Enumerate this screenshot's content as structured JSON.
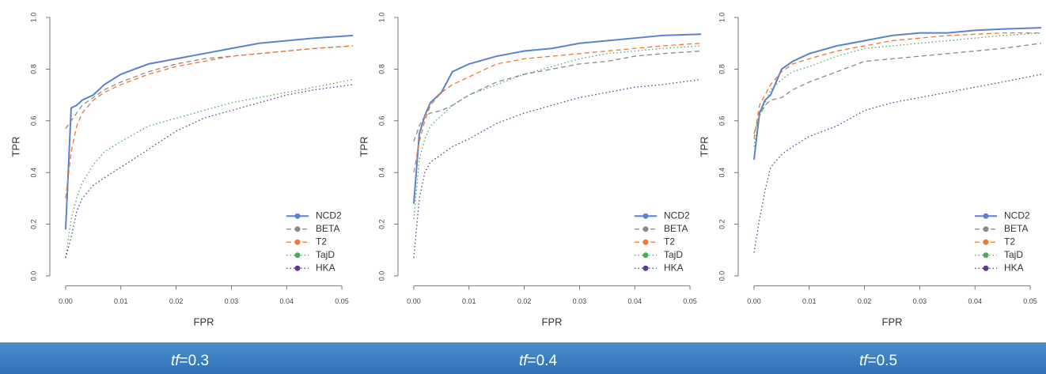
{
  "chart_data": [
    {
      "type": "line",
      "xlabel": "FPR",
      "ylabel": "TPR",
      "caption_var": "tf",
      "caption_rest": "=0.3",
      "xlim": [
        -0.002,
        0.052
      ],
      "ylim": [
        -0.02,
        1.02
      ],
      "xticks": [
        {
          "value": 0,
          "label": "0.00"
        },
        {
          "value": 0.01,
          "label": "0.01"
        },
        {
          "value": 0.02,
          "label": "0.02"
        },
        {
          "value": 0.03,
          "label": "0.03"
        },
        {
          "value": 0.04,
          "label": "0.04"
        },
        {
          "value": 0.05,
          "label": "0.05"
        }
      ],
      "yticks": [
        {
          "value": 0,
          "label": "0.0"
        },
        {
          "value": 0.2,
          "label": "0.2"
        },
        {
          "value": 0.4,
          "label": "0.4"
        },
        {
          "value": 0.6,
          "label": "0.6"
        },
        {
          "value": 0.8,
          "label": "0.8"
        },
        {
          "value": 1,
          "label": "1.0"
        }
      ],
      "legend": "bottom right",
      "x": [
        0,
        0.001,
        0.002,
        0.003,
        0.005,
        0.007,
        0.01,
        0.015,
        0.02,
        0.025,
        0.03,
        0.035,
        0.04,
        0.045,
        0.052
      ],
      "series": [
        {
          "name": "NCD2",
          "color": "#5b82cc",
          "style": "solid",
          "values": [
            0.18,
            0.65,
            0.66,
            0.68,
            0.7,
            0.74,
            0.78,
            0.82,
            0.84,
            0.86,
            0.88,
            0.9,
            0.91,
            0.92,
            0.93
          ]
        },
        {
          "name": "BETA",
          "color": "#8a8a8a",
          "style": "dashed",
          "values": [
            0.57,
            0.6,
            0.63,
            0.66,
            0.69,
            0.72,
            0.75,
            0.79,
            0.82,
            0.84,
            0.85,
            0.86,
            0.87,
            0.88,
            0.89
          ]
        },
        {
          "name": "T2",
          "color": "#ee7733",
          "style": "dashed",
          "values": [
            0.3,
            0.48,
            0.58,
            0.63,
            0.68,
            0.71,
            0.74,
            0.78,
            0.81,
            0.83,
            0.85,
            0.86,
            0.87,
            0.88,
            0.89
          ]
        },
        {
          "name": "TajD",
          "color": "#4fa85a",
          "style": "dotted",
          "values": [
            0.07,
            0.22,
            0.3,
            0.36,
            0.43,
            0.48,
            0.52,
            0.58,
            0.61,
            0.64,
            0.67,
            0.69,
            0.71,
            0.73,
            0.76
          ]
        },
        {
          "name": "HKA",
          "color": "#5b3a8c",
          "style": "dotted",
          "values": [
            0.07,
            0.15,
            0.25,
            0.3,
            0.35,
            0.38,
            0.42,
            0.49,
            0.56,
            0.61,
            0.64,
            0.67,
            0.7,
            0.72,
            0.74
          ]
        }
      ]
    },
    {
      "type": "line",
      "xlabel": "FPR",
      "ylabel": "TPR",
      "caption_var": "tf",
      "caption_rest": "=0.4",
      "xlim": [
        -0.002,
        0.052
      ],
      "ylim": [
        -0.02,
        1.02
      ],
      "xticks": [
        {
          "value": 0,
          "label": "0.00"
        },
        {
          "value": 0.01,
          "label": "0.01"
        },
        {
          "value": 0.02,
          "label": "0.02"
        },
        {
          "value": 0.03,
          "label": "0.03"
        },
        {
          "value": 0.04,
          "label": "0.04"
        },
        {
          "value": 0.05,
          "label": "0.05"
        }
      ],
      "yticks": [
        {
          "value": 0,
          "label": "0.0"
        },
        {
          "value": 0.2,
          "label": "0.2"
        },
        {
          "value": 0.4,
          "label": "0.4"
        },
        {
          "value": 0.6,
          "label": "0.6"
        },
        {
          "value": 0.8,
          "label": "0.8"
        },
        {
          "value": 1,
          "label": "1.0"
        }
      ],
      "legend": "bottom right",
      "x": [
        0,
        0.001,
        0.002,
        0.003,
        0.005,
        0.007,
        0.01,
        0.015,
        0.02,
        0.025,
        0.03,
        0.035,
        0.04,
        0.045,
        0.052
      ],
      "series": [
        {
          "name": "NCD2",
          "color": "#5b82cc",
          "style": "solid",
          "values": [
            0.28,
            0.55,
            0.62,
            0.67,
            0.71,
            0.79,
            0.82,
            0.85,
            0.87,
            0.88,
            0.9,
            0.91,
            0.92,
            0.93,
            0.935
          ]
        },
        {
          "name": "BETA",
          "color": "#8a8a8a",
          "style": "dashed",
          "values": [
            0.52,
            0.58,
            0.62,
            0.63,
            0.64,
            0.66,
            0.7,
            0.75,
            0.78,
            0.8,
            0.82,
            0.83,
            0.85,
            0.86,
            0.87
          ]
        },
        {
          "name": "T2",
          "color": "#ee7733",
          "style": "dashed",
          "values": [
            0.4,
            0.52,
            0.6,
            0.66,
            0.71,
            0.74,
            0.77,
            0.82,
            0.84,
            0.85,
            0.86,
            0.87,
            0.88,
            0.89,
            0.9
          ]
        },
        {
          "name": "TajD",
          "color": "#4fa85a",
          "style": "dotted",
          "values": [
            0.22,
            0.45,
            0.53,
            0.58,
            0.62,
            0.66,
            0.7,
            0.74,
            0.78,
            0.81,
            0.84,
            0.86,
            0.87,
            0.88,
            0.89
          ]
        },
        {
          "name": "HKA",
          "color": "#5b3a8c",
          "style": "dotted",
          "values": [
            0.07,
            0.3,
            0.4,
            0.44,
            0.47,
            0.5,
            0.53,
            0.59,
            0.63,
            0.66,
            0.69,
            0.71,
            0.73,
            0.74,
            0.76
          ]
        }
      ]
    },
    {
      "type": "line",
      "xlabel": "FPR",
      "ylabel": "TPR",
      "caption_var": "tf",
      "caption_rest": "=0.5",
      "xlim": [
        -0.002,
        0.052
      ],
      "ylim": [
        -0.02,
        1.02
      ],
      "xticks": [
        {
          "value": 0,
          "label": "0.00"
        },
        {
          "value": 0.01,
          "label": "0.01"
        },
        {
          "value": 0.02,
          "label": "0.02"
        },
        {
          "value": 0.03,
          "label": "0.03"
        },
        {
          "value": 0.04,
          "label": "0.04"
        },
        {
          "value": 0.05,
          "label": "0.05"
        }
      ],
      "yticks": [
        {
          "value": 0,
          "label": "0.0"
        },
        {
          "value": 0.2,
          "label": "0.2"
        },
        {
          "value": 0.4,
          "label": "0.4"
        },
        {
          "value": 0.6,
          "label": "0.6"
        },
        {
          "value": 0.8,
          "label": "0.8"
        },
        {
          "value": 1,
          "label": "1.0"
        }
      ],
      "legend": "bottom right",
      "x": [
        0,
        0.001,
        0.002,
        0.003,
        0.005,
        0.007,
        0.01,
        0.015,
        0.02,
        0.025,
        0.03,
        0.035,
        0.04,
        0.045,
        0.052
      ],
      "series": [
        {
          "name": "NCD2",
          "color": "#5b82cc",
          "style": "solid",
          "values": [
            0.45,
            0.63,
            0.68,
            0.7,
            0.8,
            0.83,
            0.86,
            0.89,
            0.91,
            0.93,
            0.94,
            0.94,
            0.95,
            0.955,
            0.96
          ]
        },
        {
          "name": "BETA",
          "color": "#8a8a8a",
          "style": "dashed",
          "values": [
            0.55,
            0.62,
            0.66,
            0.68,
            0.69,
            0.72,
            0.75,
            0.79,
            0.83,
            0.84,
            0.85,
            0.86,
            0.87,
            0.88,
            0.9
          ]
        },
        {
          "name": "T2",
          "color": "#ee7733",
          "style": "dashed",
          "values": [
            0.53,
            0.66,
            0.7,
            0.74,
            0.79,
            0.82,
            0.84,
            0.87,
            0.89,
            0.91,
            0.92,
            0.93,
            0.935,
            0.94,
            0.94
          ]
        },
        {
          "name": "TajD",
          "color": "#4fa85a",
          "style": "dotted",
          "values": [
            0.5,
            0.62,
            0.67,
            0.72,
            0.76,
            0.79,
            0.81,
            0.85,
            0.88,
            0.89,
            0.9,
            0.91,
            0.92,
            0.93,
            0.94
          ]
        },
        {
          "name": "HKA",
          "color": "#5b3a8c",
          "style": "dotted",
          "values": [
            0.09,
            0.22,
            0.33,
            0.42,
            0.47,
            0.5,
            0.54,
            0.58,
            0.64,
            0.67,
            0.69,
            0.71,
            0.73,
            0.75,
            0.78
          ]
        }
      ]
    }
  ]
}
